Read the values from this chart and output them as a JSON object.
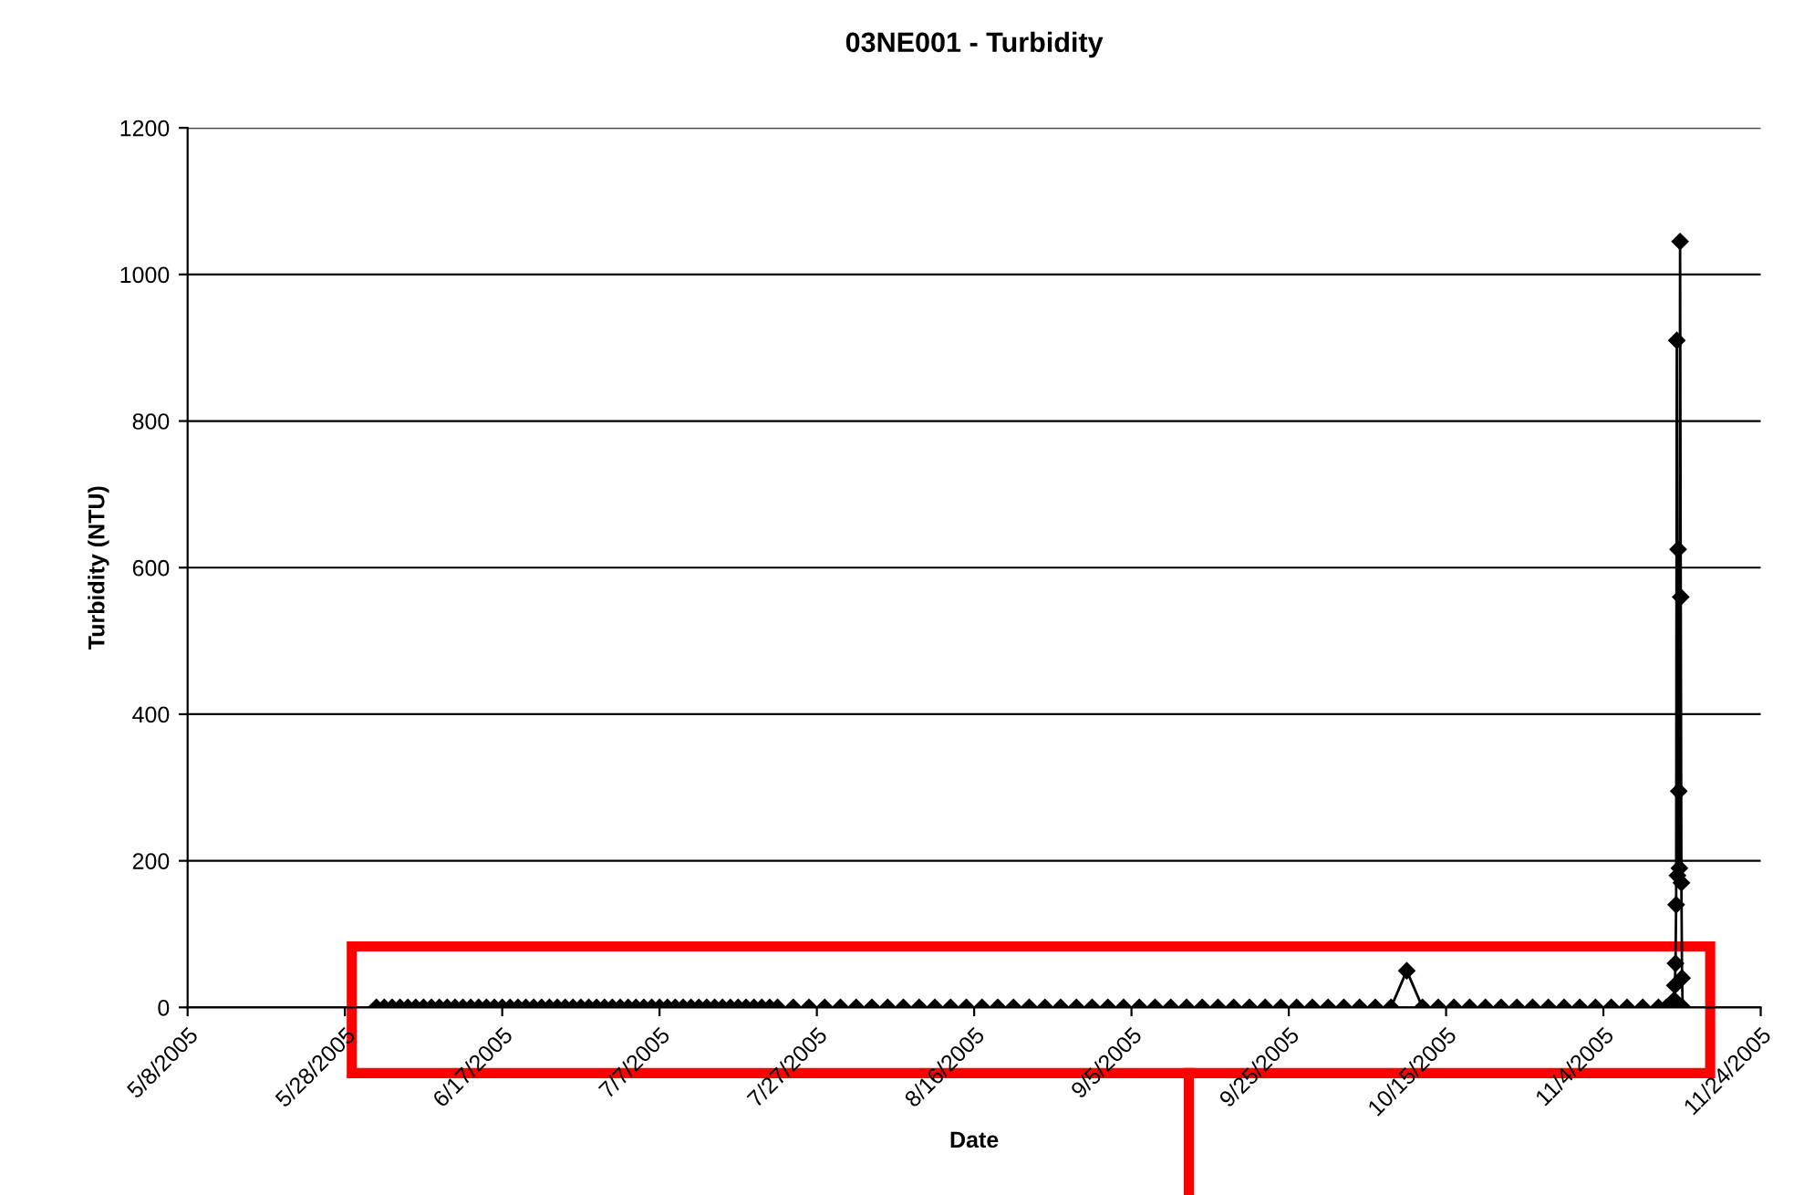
{
  "chart_data": {
    "type": "line",
    "title": "03NE001 - Turbidity",
    "xlabel": "Date",
    "ylabel": "Turbidity (NTU)",
    "xlim": [
      "2005-05-08",
      "2005-11-24"
    ],
    "xticks": [
      {
        "value": "2005-05-08",
        "label": "5/8/2005"
      },
      {
        "value": "2005-05-28",
        "label": "5/28/2005"
      },
      {
        "value": "2005-06-17",
        "label": "6/17/2005"
      },
      {
        "value": "2005-07-07",
        "label": "7/7/2005"
      },
      {
        "value": "2005-07-27",
        "label": "7/27/2005"
      },
      {
        "value": "2005-08-16",
        "label": "8/16/2005"
      },
      {
        "value": "2005-09-05",
        "label": "9/5/2005"
      },
      {
        "value": "2005-09-25",
        "label": "9/25/2005"
      },
      {
        "value": "2005-10-15",
        "label": "10/15/2005"
      },
      {
        "value": "2005-11-04",
        "label": "11/4/2005"
      },
      {
        "value": "2005-11-24",
        "label": "11/24/2005"
      }
    ],
    "ylim": [
      0,
      1200
    ],
    "yticks": [
      0,
      200,
      400,
      600,
      800,
      1000,
      1200
    ],
    "grid": "y",
    "marker": "diamond",
    "line_style": "solid",
    "series": [
      {
        "color": "#000000",
        "x": [
          "2005-06-01",
          "2005-06-02",
          "2005-06-03",
          "2005-06-04",
          "2005-06-05",
          "2005-06-06",
          "2005-06-07",
          "2005-06-08",
          "2005-06-09",
          "2005-06-10",
          "2005-06-11",
          "2005-06-12",
          "2005-06-13",
          "2005-06-14",
          "2005-06-15",
          "2005-06-16",
          "2005-06-17",
          "2005-06-18",
          "2005-06-19",
          "2005-06-20",
          "2005-06-21",
          "2005-06-22",
          "2005-06-23",
          "2005-06-24",
          "2005-06-25",
          "2005-06-26",
          "2005-06-27",
          "2005-06-28",
          "2005-06-29",
          "2005-06-30",
          "2005-07-01",
          "2005-07-02",
          "2005-07-03",
          "2005-07-04",
          "2005-07-05",
          "2005-07-06",
          "2005-07-07",
          "2005-07-08",
          "2005-07-09",
          "2005-07-10",
          "2005-07-11",
          "2005-07-12",
          "2005-07-13",
          "2005-07-14",
          "2005-07-15",
          "2005-07-16",
          "2005-07-17",
          "2005-07-18",
          "2005-07-19",
          "2005-07-20",
          "2005-07-21",
          "2005-07-22",
          "2005-07-24",
          "2005-07-26",
          "2005-07-28",
          "2005-07-30",
          "2005-08-01",
          "2005-08-03",
          "2005-08-05",
          "2005-08-07",
          "2005-08-09",
          "2005-08-11",
          "2005-08-13",
          "2005-08-15",
          "2005-08-17",
          "2005-08-19",
          "2005-08-21",
          "2005-08-23",
          "2005-08-25",
          "2005-08-27",
          "2005-08-29",
          "2005-08-31",
          "2005-09-02",
          "2005-09-04",
          "2005-09-06",
          "2005-09-08",
          "2005-09-10",
          "2005-09-12",
          "2005-09-14",
          "2005-09-16",
          "2005-09-18",
          "2005-09-20",
          "2005-09-22",
          "2005-09-24",
          "2005-09-26",
          "2005-09-28",
          "2005-09-30",
          "2005-10-02",
          "2005-10-04",
          "2005-10-06",
          "2005-10-08",
          "2005-10-10",
          "2005-10-12",
          "2005-10-14",
          "2005-10-16",
          "2005-10-18",
          "2005-10-20",
          "2005-10-22",
          "2005-10-24",
          "2005-10-26",
          "2005-10-28",
          "2005-10-30",
          "2005-11-01",
          "2005-11-03",
          "2005-11-05",
          "2005-11-07",
          "2005-11-09",
          "2005-11-11",
          "2005-11-12",
          "2005-11-13T00:00",
          "2005-11-13T02:00",
          "2005-11-13T04:00",
          "2005-11-13T06:00",
          "2005-11-13T08:00",
          "2005-11-13T10:00",
          "2005-11-13T12:00",
          "2005-11-13T14:00",
          "2005-11-13T16:00",
          "2005-11-13T18:00",
          "2005-11-13T20:00",
          "2005-11-13T22:00",
          "2005-11-14T00:00",
          "2005-11-14T02:00"
        ],
        "values": [
          0,
          0,
          0,
          0,
          0,
          0,
          0,
          0,
          0,
          0,
          0,
          0,
          0,
          0,
          0,
          0,
          0,
          0,
          0,
          0,
          0,
          0,
          0,
          0,
          0,
          0,
          0,
          0,
          0,
          0,
          0,
          0,
          0,
          0,
          0,
          0,
          0,
          0,
          0,
          0,
          0,
          0,
          0,
          0,
          0,
          0,
          0,
          0,
          0,
          0,
          0,
          0,
          0,
          0,
          0,
          0,
          0,
          0,
          0,
          0,
          0,
          0,
          0,
          0,
          0,
          0,
          0,
          0,
          0,
          0,
          0,
          0,
          0,
          0,
          0,
          0,
          0,
          0,
          0,
          0,
          0,
          0,
          0,
          0,
          0,
          0,
          0,
          0,
          0,
          0,
          0,
          50,
          0,
          0,
          0,
          0,
          0,
          0,
          0,
          0,
          0,
          0,
          0,
          0,
          0,
          0,
          0,
          0,
          0,
          10,
          30,
          60,
          140,
          910,
          180,
          625,
          295,
          190,
          1045,
          560,
          170,
          40,
          0
        ]
      }
    ]
  }
}
